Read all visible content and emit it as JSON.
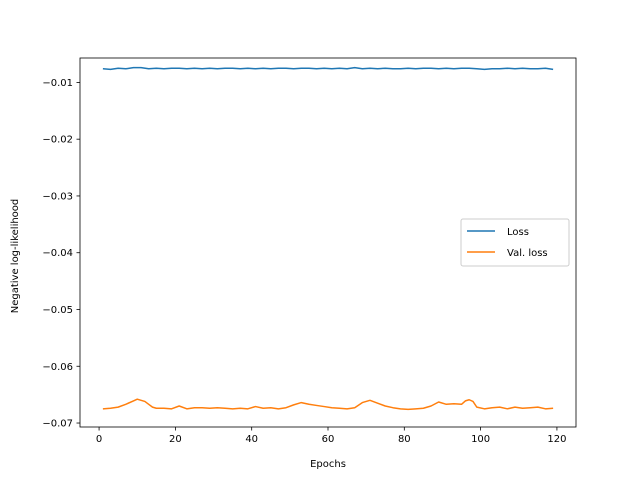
{
  "chart_data": {
    "type": "line",
    "xlabel": "Epochs",
    "ylabel": "Negative log-likelihood",
    "xlim": [
      -5,
      125
    ],
    "ylim": [
      -0.0707,
      -0.0057
    ],
    "xticks": [
      0,
      20,
      40,
      60,
      80,
      100,
      120
    ],
    "xtick_labels": [
      "0",
      "20",
      "40",
      "60",
      "80",
      "100",
      "120"
    ],
    "yticks": [
      -0.01,
      -0.02,
      -0.03,
      -0.04,
      -0.05,
      -0.06,
      -0.07
    ],
    "ytick_labels": [
      "−0.01",
      "−0.02",
      "−0.03",
      "−0.04",
      "−0.05",
      "−0.06",
      "−0.07"
    ],
    "grid": false,
    "legend_position": "center-right",
    "series": [
      {
        "name": "Loss",
        "color": "#1f77b4",
        "x": [
          1,
          3,
          5,
          7,
          9,
          11,
          13,
          15,
          17,
          19,
          21,
          23,
          25,
          27,
          29,
          31,
          33,
          35,
          37,
          39,
          41,
          43,
          45,
          47,
          49,
          51,
          53,
          55,
          57,
          59,
          61,
          63,
          65,
          67,
          69,
          71,
          73,
          75,
          77,
          79,
          81,
          83,
          85,
          87,
          89,
          91,
          93,
          95,
          97,
          99,
          101,
          103,
          105,
          107,
          109,
          111,
          113,
          115,
          117,
          119
        ],
        "y": [
          -0.0076,
          -0.0077,
          -0.0075,
          -0.0076,
          -0.0074,
          -0.0074,
          -0.0076,
          -0.0075,
          -0.0076,
          -0.0075,
          -0.0075,
          -0.0076,
          -0.0075,
          -0.0076,
          -0.0075,
          -0.0076,
          -0.0075,
          -0.0075,
          -0.0076,
          -0.0075,
          -0.0076,
          -0.0075,
          -0.0076,
          -0.0075,
          -0.0075,
          -0.0076,
          -0.0075,
          -0.0075,
          -0.0076,
          -0.0075,
          -0.0076,
          -0.0075,
          -0.0076,
          -0.0074,
          -0.0076,
          -0.0075,
          -0.0076,
          -0.0075,
          -0.0076,
          -0.0076,
          -0.0075,
          -0.0076,
          -0.0075,
          -0.0075,
          -0.0076,
          -0.0075,
          -0.0076,
          -0.0075,
          -0.0075,
          -0.0076,
          -0.0077,
          -0.0076,
          -0.0076,
          -0.0075,
          -0.0076,
          -0.0075,
          -0.0076,
          -0.0076,
          -0.0075,
          -0.0077
        ]
      },
      {
        "name": "Val. loss",
        "color": "#ff7f0e",
        "x": [
          1,
          3,
          5,
          7,
          9,
          10,
          11,
          12,
          13,
          14,
          15,
          17,
          19,
          21,
          23,
          25,
          27,
          29,
          31,
          33,
          35,
          37,
          39,
          41,
          43,
          45,
          47,
          49,
          51,
          53,
          55,
          57,
          59,
          61,
          63,
          65,
          67,
          69,
          71,
          73,
          75,
          77,
          79,
          81,
          83,
          85,
          87,
          89,
          91,
          93,
          95,
          96,
          97,
          98,
          99,
          101,
          103,
          105,
          107,
          109,
          111,
          113,
          115,
          117,
          119
        ],
        "y": [
          -0.0675,
          -0.0674,
          -0.0672,
          -0.0667,
          -0.0661,
          -0.0658,
          -0.066,
          -0.0662,
          -0.0667,
          -0.0672,
          -0.0674,
          -0.0674,
          -0.0675,
          -0.067,
          -0.0675,
          -0.0673,
          -0.0673,
          -0.0674,
          -0.0673,
          -0.0674,
          -0.0675,
          -0.0674,
          -0.0675,
          -0.0671,
          -0.0674,
          -0.0673,
          -0.0675,
          -0.0673,
          -0.0668,
          -0.0664,
          -0.0667,
          -0.0669,
          -0.0671,
          -0.0673,
          -0.0674,
          -0.0675,
          -0.0673,
          -0.0664,
          -0.066,
          -0.0665,
          -0.067,
          -0.0673,
          -0.0675,
          -0.0676,
          -0.0675,
          -0.0674,
          -0.067,
          -0.0663,
          -0.0667,
          -0.0666,
          -0.0667,
          -0.0661,
          -0.0659,
          -0.0662,
          -0.0672,
          -0.0675,
          -0.0673,
          -0.0672,
          -0.0675,
          -0.0672,
          -0.0674,
          -0.0673,
          -0.0672,
          -0.0675,
          -0.0674
        ]
      }
    ]
  }
}
